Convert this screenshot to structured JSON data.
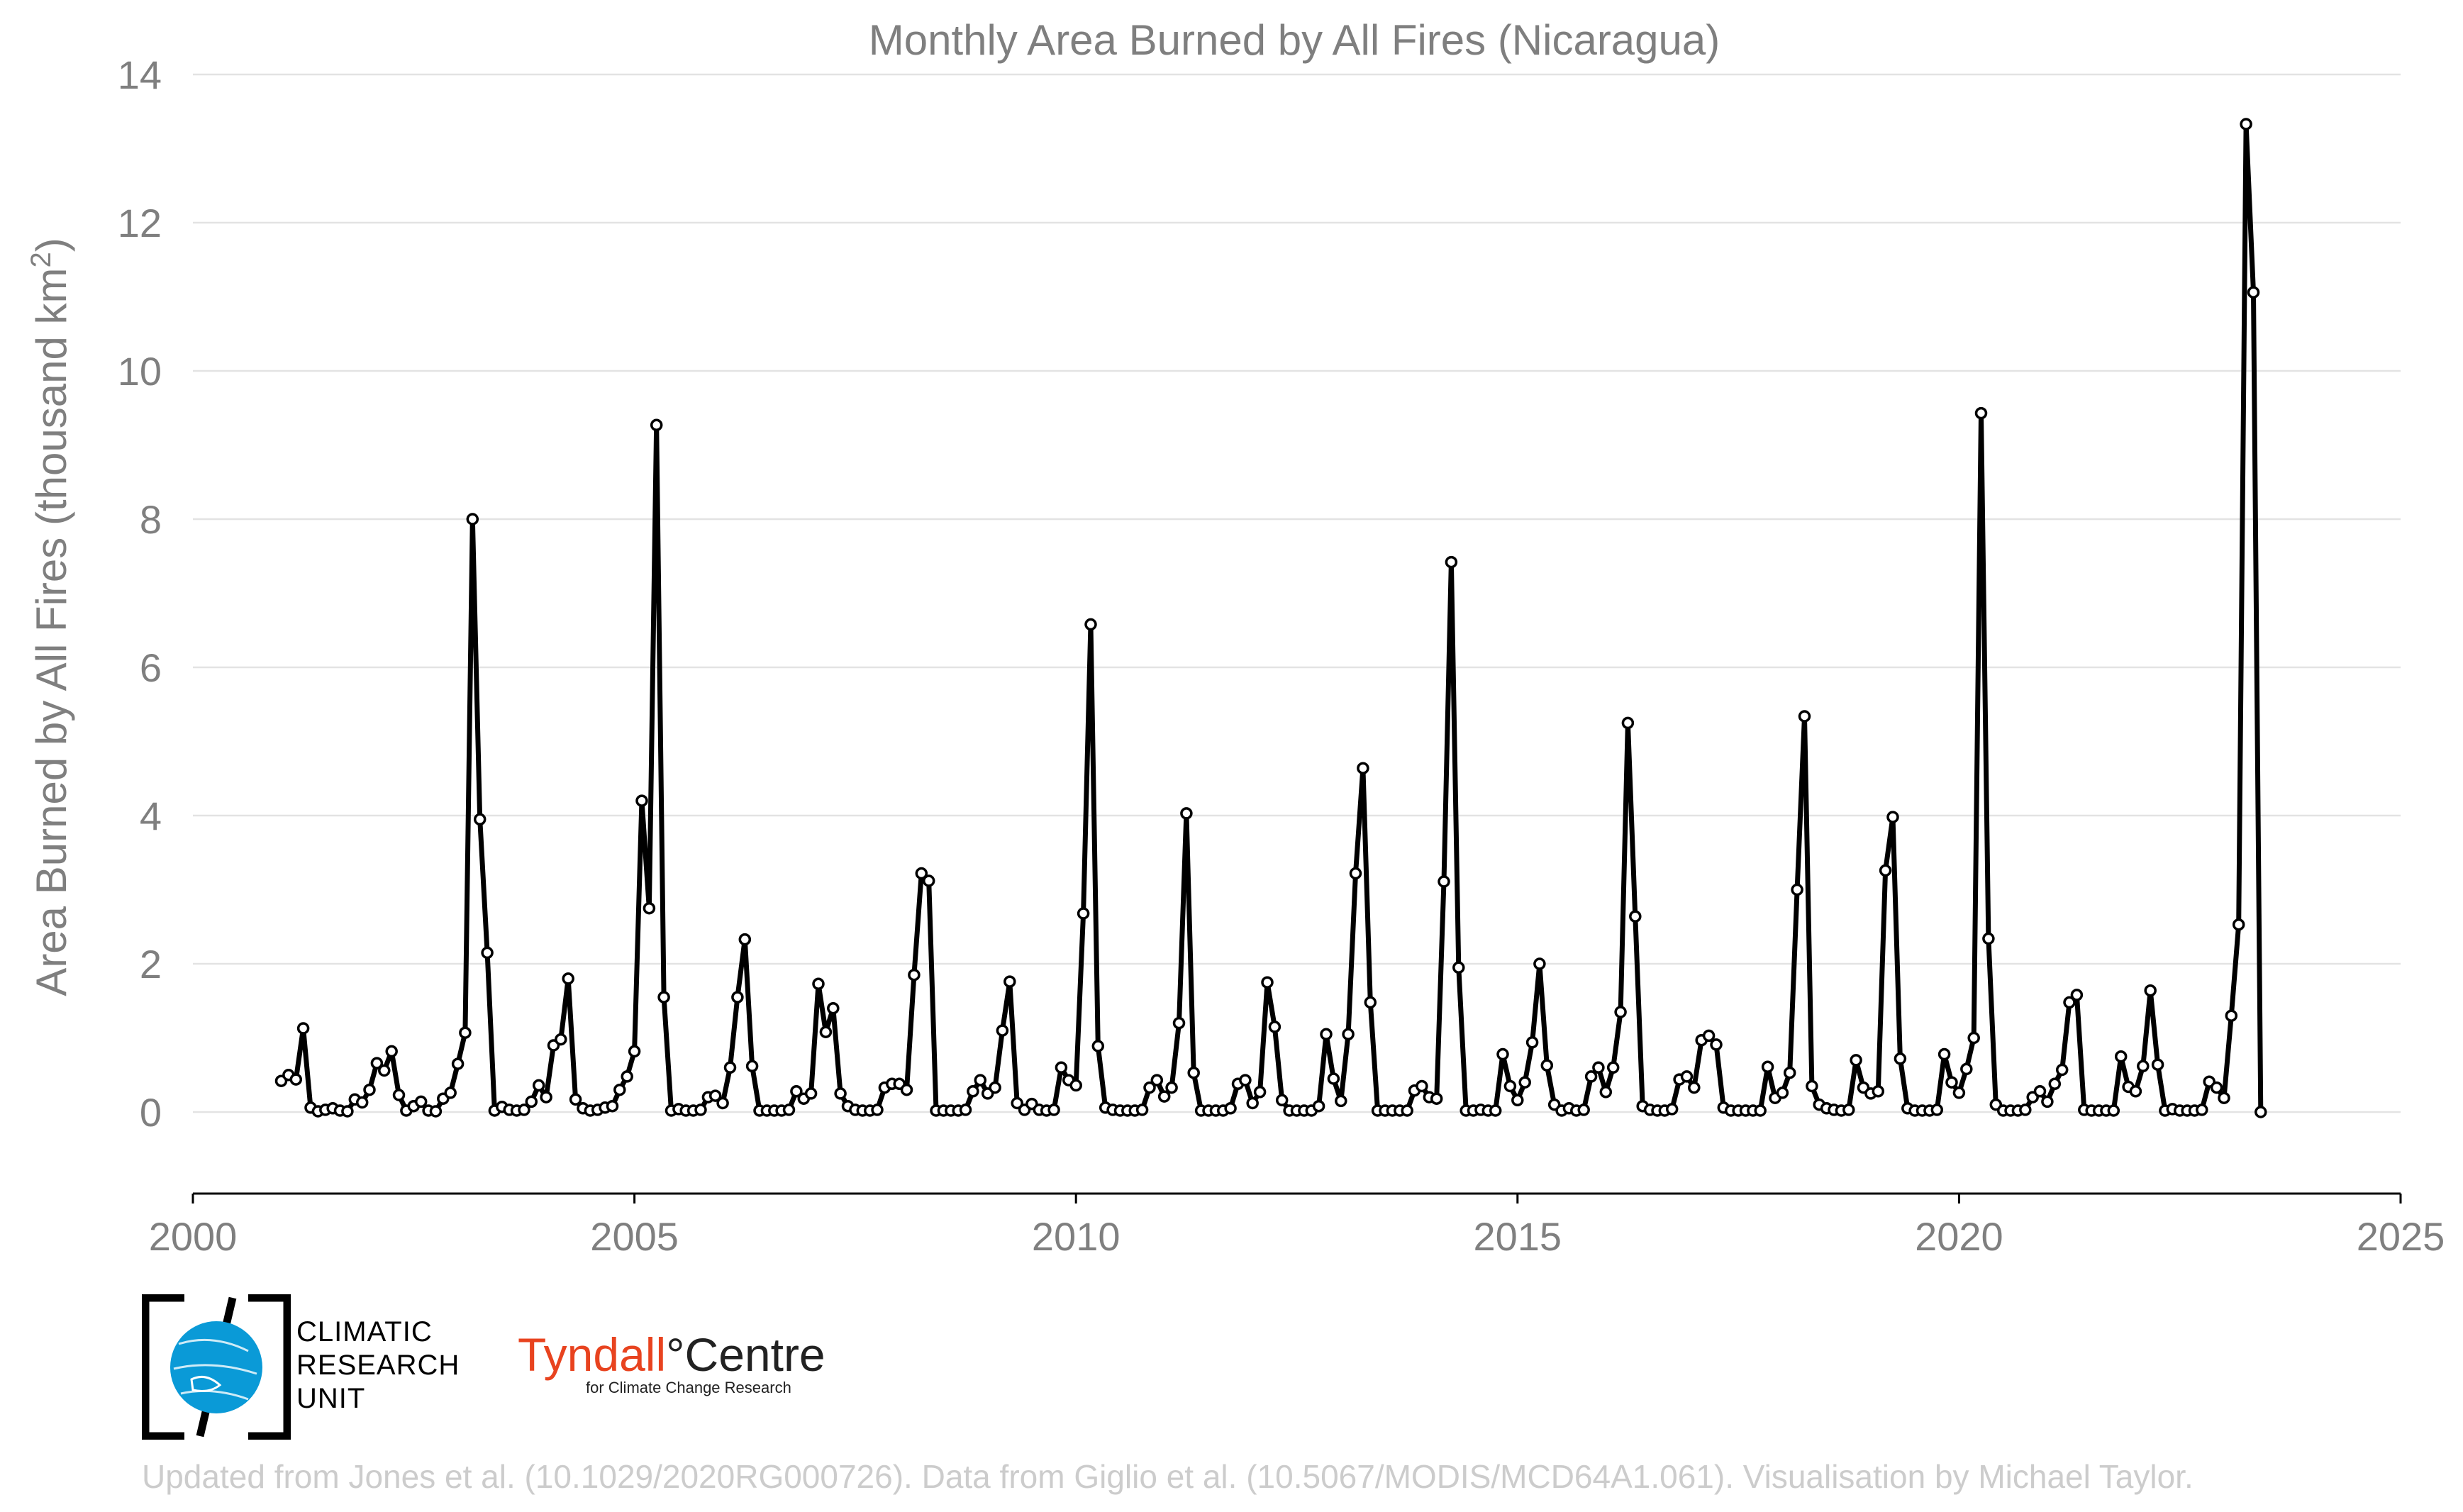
{
  "chart_data": {
    "type": "line",
    "title": "Monthly Area Burned by All Fires (Nicaragua)",
    "ylabel_text": "Area Burned by All Fires (thousand km",
    "ylabel_sup": "2",
    "ylabel_close": ")",
    "xlabel": "",
    "xlim": [
      2000,
      2025
    ],
    "ylim": [
      -1.1,
      14
    ],
    "x_ticks": [
      2000,
      2005,
      2010,
      2015,
      2020,
      2025
    ],
    "y_ticks": [
      0,
      2,
      4,
      6,
      8,
      10,
      12,
      14
    ],
    "grid": "horizontal",
    "start": "2001-01",
    "frequency": "monthly",
    "series": [
      {
        "values": [
          0.42,
          0.5,
          0.44,
          1.13,
          0.06,
          0.01,
          0.03,
          0.05,
          0.02,
          0.01,
          0.17,
          0.13,
          0.3,
          0.66,
          0.56,
          0.82,
          0.23,
          0.02,
          0.08,
          0.14,
          0.02,
          0.01,
          0.18,
          0.26,
          0.65,
          1.07,
          8.0,
          3.95,
          2.15,
          0.02,
          0.07,
          0.03,
          0.02,
          0.03,
          0.14,
          0.36,
          0.2,
          0.9,
          0.98,
          1.8,
          0.17,
          0.05,
          0.02,
          0.03,
          0.06,
          0.08,
          0.3,
          0.48,
          0.82,
          4.2,
          2.75,
          9.27,
          1.55,
          0.02,
          0.04,
          0.02,
          0.02,
          0.03,
          0.2,
          0.22,
          0.12,
          0.6,
          1.55,
          2.33,
          0.62,
          0.02,
          0.02,
          0.02,
          0.02,
          0.03,
          0.28,
          0.18,
          0.25,
          1.73,
          1.08,
          1.4,
          0.25,
          0.08,
          0.03,
          0.02,
          0.02,
          0.03,
          0.33,
          0.38,
          0.38,
          0.3,
          1.85,
          3.22,
          3.12,
          0.02,
          0.02,
          0.02,
          0.02,
          0.03,
          0.28,
          0.43,
          0.25,
          0.33,
          1.1,
          1.76,
          0.12,
          0.03,
          0.11,
          0.03,
          0.02,
          0.03,
          0.6,
          0.43,
          0.36,
          2.68,
          6.58,
          0.89,
          0.06,
          0.03,
          0.02,
          0.02,
          0.02,
          0.03,
          0.33,
          0.43,
          0.21,
          0.33,
          1.2,
          4.03,
          0.53,
          0.02,
          0.02,
          0.02,
          0.02,
          0.05,
          0.38,
          0.43,
          0.12,
          0.27,
          1.75,
          1.15,
          0.16,
          0.02,
          0.02,
          0.02,
          0.02,
          0.08,
          1.05,
          0.45,
          0.15,
          1.05,
          3.22,
          4.64,
          1.48,
          0.02,
          0.02,
          0.02,
          0.02,
          0.02,
          0.29,
          0.35,
          0.2,
          0.18,
          3.11,
          7.42,
          1.95,
          0.02,
          0.02,
          0.03,
          0.02,
          0.02,
          0.78,
          0.35,
          0.16,
          0.4,
          0.94,
          2.0,
          0.63,
          0.1,
          0.02,
          0.05,
          0.02,
          0.03,
          0.48,
          0.6,
          0.27,
          0.6,
          1.35,
          5.25,
          2.64,
          0.08,
          0.03,
          0.02,
          0.02,
          0.04,
          0.44,
          0.48,
          0.33,
          0.97,
          1.03,
          0.91,
          0.06,
          0.02,
          0.02,
          0.02,
          0.02,
          0.02,
          0.61,
          0.19,
          0.26,
          0.53,
          3.0,
          5.34,
          0.35,
          0.1,
          0.05,
          0.03,
          0.02,
          0.03,
          0.7,
          0.33,
          0.25,
          0.28,
          3.26,
          3.98,
          0.72,
          0.05,
          0.02,
          0.02,
          0.02,
          0.03,
          0.78,
          0.4,
          0.26,
          0.58,
          1.0,
          9.43,
          2.34,
          0.1,
          0.02,
          0.02,
          0.02,
          0.03,
          0.2,
          0.28,
          0.14,
          0.38,
          0.57,
          1.48,
          1.58,
          0.03,
          0.02,
          0.02,
          0.02,
          0.02,
          0.75,
          0.34,
          0.28,
          0.62,
          1.64,
          0.64,
          0.02,
          0.04,
          0.02,
          0.02,
          0.02,
          0.03,
          0.41,
          0.33,
          0.19,
          1.3,
          2.53,
          13.33,
          11.06,
          0.0
        ]
      }
    ]
  },
  "logos": {
    "cru": [
      "CLIMATIC",
      "RESEARCH",
      "UNIT"
    ],
    "tyndall_main": "Tyndall",
    "tyndall_degree": "°",
    "tyndall_centre": "Centre",
    "tyndall_sub": "for Climate Change Research"
  },
  "footer": "Updated from Jones et al. (10.1029/2020RG000726). Data from Giglio et al. (10.5067/MODIS/MCD64A1.061). Visualisation by Michael Taylor.",
  "colors": {
    "series": "#000000",
    "marker_fill": "#ffffff",
    "text": "#7f7f7f",
    "grid": "#e3e3e3",
    "footer": "#cccccc",
    "cru_blue": "#0a9ad7",
    "tyndall_red": "#e8431f"
  }
}
